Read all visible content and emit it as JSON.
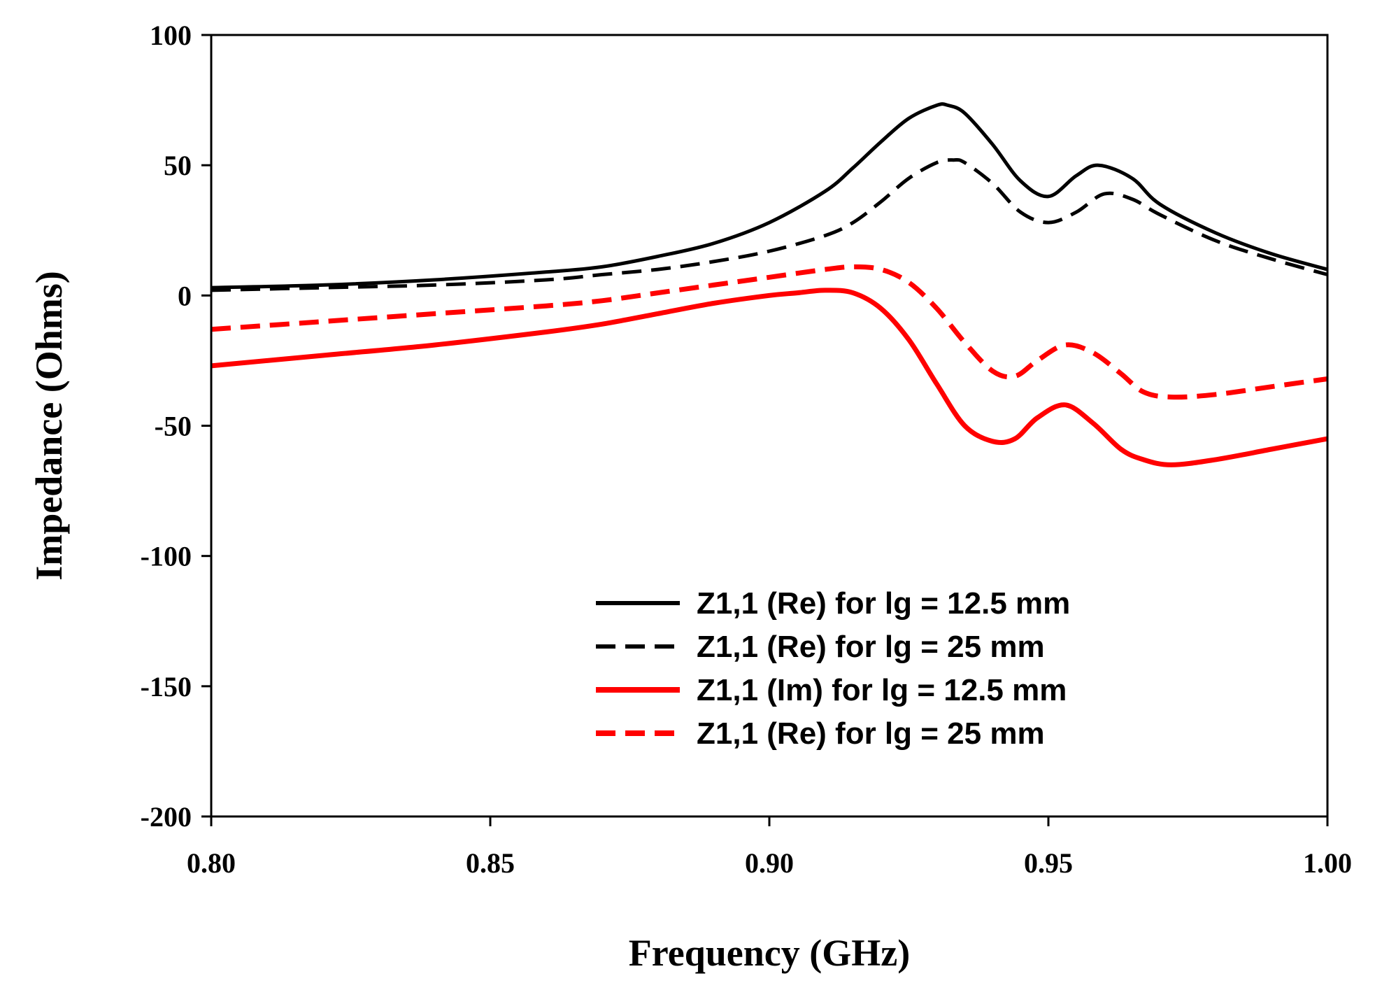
{
  "chart_data": {
    "type": "line",
    "title": "",
    "xlabel": "Frequency (GHz)",
    "ylabel": "Impedance (Ohms)",
    "xlim": [
      0.8,
      1.0
    ],
    "ylim": [
      -200,
      100
    ],
    "xticks": [
      0.8,
      0.85,
      0.9,
      0.95,
      1.0
    ],
    "xtick_labels": [
      "0.80",
      "0.85",
      "0.90",
      "0.95",
      "1.00"
    ],
    "yticks": [
      100,
      50,
      0,
      -50,
      -100,
      -150,
      -200
    ],
    "ytick_labels": [
      "100",
      "50",
      "0",
      "-50",
      "-100",
      "-150",
      "-200"
    ],
    "grid": false,
    "legend_position": "bottom-right",
    "series": [
      {
        "name": "Z1,1 (Re) for lg = 12.5 mm",
        "color": "#000000",
        "dash": "solid",
        "x": [
          0.8,
          0.82,
          0.84,
          0.86,
          0.87,
          0.88,
          0.89,
          0.9,
          0.91,
          0.915,
          0.92,
          0.925,
          0.93,
          0.932,
          0.935,
          0.94,
          0.945,
          0.95,
          0.955,
          0.959,
          0.965,
          0.97,
          0.98,
          0.99,
          1.0
        ],
        "y": [
          3,
          4,
          6,
          9,
          11,
          15,
          20,
          28,
          40,
          49,
          59,
          68,
          73,
          73,
          70,
          58,
          44,
          38,
          46,
          50,
          45,
          35,
          24,
          16,
          10
        ]
      },
      {
        "name": "Z1,1 (Re) for lg = 25 mm",
        "color": "#000000",
        "dash": "dashed",
        "x": [
          0.8,
          0.82,
          0.84,
          0.86,
          0.87,
          0.88,
          0.89,
          0.9,
          0.91,
          0.915,
          0.92,
          0.925,
          0.93,
          0.933,
          0.935,
          0.94,
          0.945,
          0.95,
          0.955,
          0.96,
          0.965,
          0.97,
          0.98,
          0.99,
          1.0
        ],
        "y": [
          2,
          3,
          4,
          6,
          8,
          10,
          13,
          17,
          23,
          28,
          36,
          45,
          51,
          52,
          51,
          43,
          32,
          28,
          32,
          39,
          37,
          31,
          21,
          14,
          8
        ]
      },
      {
        "name": "Z1,1 (Im) for lg = 12.5 mm",
        "color": "#ff0000",
        "dash": "solid",
        "x": [
          0.8,
          0.82,
          0.84,
          0.86,
          0.87,
          0.88,
          0.89,
          0.9,
          0.905,
          0.91,
          0.915,
          0.92,
          0.925,
          0.93,
          0.935,
          0.94,
          0.944,
          0.948,
          0.953,
          0.958,
          0.963,
          0.967,
          0.972,
          0.98,
          0.99,
          1.0
        ],
        "y": [
          -27,
          -23,
          -19,
          -14,
          -11,
          -7,
          -3,
          0,
          1,
          2,
          1,
          -5,
          -17,
          -34,
          -50,
          -56,
          -55,
          -47,
          -42,
          -49,
          -59,
          -63,
          -65,
          -63,
          -59,
          -55
        ]
      },
      {
        "name": "Z1,1 (Re) for lg = 25 mm",
        "color": "#ff0000",
        "dash": "dashed",
        "x": [
          0.8,
          0.82,
          0.84,
          0.86,
          0.87,
          0.88,
          0.89,
          0.9,
          0.91,
          0.915,
          0.92,
          0.925,
          0.93,
          0.935,
          0.94,
          0.944,
          0.948,
          0.953,
          0.958,
          0.963,
          0.967,
          0.972,
          0.98,
          0.99,
          1.0
        ],
        "y": [
          -13,
          -10,
          -7,
          -4,
          -2,
          1,
          4,
          7,
          10,
          11,
          10,
          5,
          -5,
          -18,
          -29,
          -31,
          -25,
          -19,
          -22,
          -30,
          -37,
          -39,
          -38,
          -35,
          -32
        ]
      }
    ]
  }
}
